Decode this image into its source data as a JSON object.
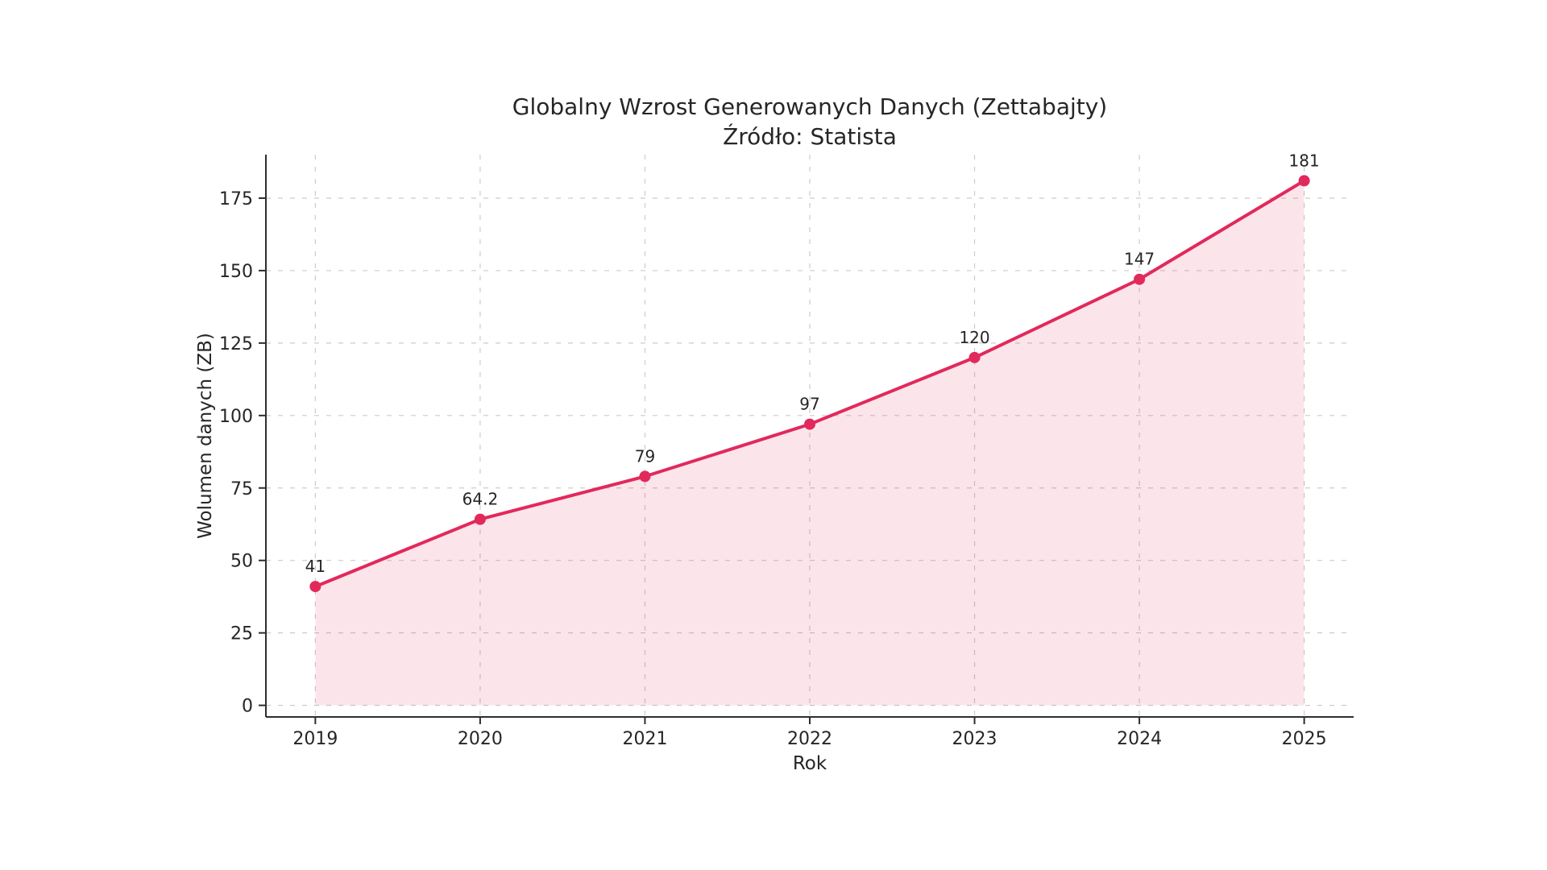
{
  "chart_data": {
    "type": "line",
    "title": "Globalny Wzrost Generowanych Danych (Zettabajty)",
    "subtitle": "Źródło: Statista",
    "xlabel": "Rok",
    "ylabel": "Wolumen danych (ZB)",
    "x": [
      2019,
      2020,
      2021,
      2022,
      2023,
      2024,
      2025
    ],
    "xtick_labels": [
      "2019",
      "2020",
      "2021",
      "2022",
      "2023",
      "2024",
      "2025"
    ],
    "series": [
      {
        "name": "Wolumen danych (ZB)",
        "values": [
          41,
          64.2,
          79,
          97,
          120,
          147,
          181
        ]
      }
    ],
    "point_labels": [
      "41",
      "64.2",
      "79",
      "97",
      "120",
      "147",
      "181"
    ],
    "yticks": [
      0,
      25,
      50,
      75,
      100,
      125,
      150,
      175
    ],
    "ytick_labels": [
      "0",
      "25",
      "50",
      "75",
      "100",
      "125",
      "150",
      "175"
    ],
    "xlim": [
      2018.7,
      2025.3
    ],
    "ylim": [
      -4,
      190
    ],
    "grid": true,
    "grid_linestyle": "dashed",
    "area_fill_to_zero": true,
    "legend": null,
    "colors": {
      "line": "#e2295b",
      "marker": "#e2295b",
      "fill": "rgba(226,41,91,0.12)",
      "text": "#262626",
      "grid": "#cccccc",
      "spine": "#2e2e2e"
    }
  }
}
